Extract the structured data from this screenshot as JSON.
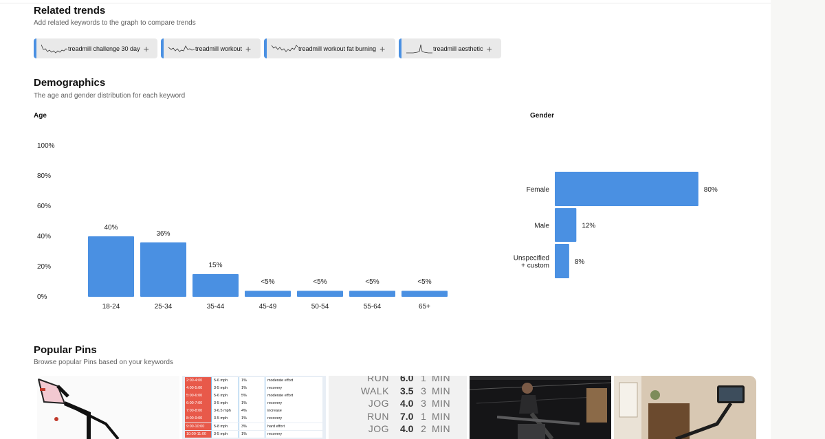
{
  "related": {
    "title": "Related trends",
    "subtitle": "Add related keywords to the graph to compare trends",
    "chips": [
      {
        "label": "treadmill challenge 30 day",
        "icon": "sparkline-icon"
      },
      {
        "label": "treadmill workout",
        "icon": "sparkline-icon"
      },
      {
        "label": "treadmill workout fat burning",
        "icon": "sparkline-icon"
      },
      {
        "label": "treadmill aesthetic",
        "icon": "sparkline-icon"
      }
    ],
    "add_symbol": "+"
  },
  "demographics": {
    "title": "Demographics",
    "subtitle": "The age and gender distribution for each keyword",
    "age_heading": "Age",
    "gender_heading": "Gender"
  },
  "chart_data": [
    {
      "type": "bar",
      "title": "Age",
      "categories": [
        "18-24",
        "25-34",
        "35-44",
        "45-49",
        "50-54",
        "55-64",
        "65+"
      ],
      "values": [
        40,
        36,
        15,
        4,
        4,
        4,
        4
      ],
      "value_labels": [
        "40%",
        "36%",
        "15%",
        "<5%",
        "<5%",
        "<5%",
        "<5%"
      ],
      "ylim": [
        0,
        100
      ],
      "yticks": [
        "100%",
        "80%",
        "60%",
        "40%",
        "20%",
        "0%"
      ],
      "color": "#4a90e2"
    },
    {
      "type": "bar",
      "orientation": "horizontal",
      "title": "Gender",
      "categories": [
        "Female",
        "Male",
        "Unspecified\n+ custom"
      ],
      "values": [
        80,
        12,
        8
      ],
      "value_labels": [
        "80%",
        "12%",
        "8%"
      ],
      "xlim": [
        0,
        100
      ],
      "color": "#4a90e2"
    }
  ],
  "popular": {
    "title": "Popular Pins",
    "subtitle": "Browse popular Pins based on your keywords",
    "schedule_rows": [
      {
        "time": "2:00-4:00",
        "speed": "5-6 mph",
        "incline": "1%",
        "note": "moderate effort"
      },
      {
        "time": "4:00-5:00",
        "speed": "3-5 mph",
        "incline": "1%",
        "note": "recovery"
      },
      {
        "time": "5:00-6:00",
        "speed": "5-6 mph",
        "incline": "5%",
        "note": "moderate effort"
      },
      {
        "time": "6:00-7:00",
        "speed": "3-5 mph",
        "incline": "1%",
        "note": "recovery"
      },
      {
        "time": "7:00-8:00",
        "speed": "3-6.5 mph",
        "incline": "4%",
        "note": "increase"
      },
      {
        "time": "8:00-9:00",
        "speed": "3-5 mph",
        "incline": "1%",
        "note": "recovery"
      },
      {
        "time": "9:00-10:00",
        "speed": "5-8 mph",
        "incline": "3%",
        "note": "hard effort"
      },
      {
        "time": "10:00-11:00",
        "speed": "3-5 mph",
        "incline": "1%",
        "note": "recovery"
      }
    ],
    "interval_rows": [
      {
        "move": "RUN",
        "speed": "6.0",
        "dur": "1",
        "unit": "MIN"
      },
      {
        "move": "WALK",
        "speed": "3.5",
        "dur": "3",
        "unit": "MIN"
      },
      {
        "move": "JOG",
        "speed": "4.0",
        "dur": "3",
        "unit": "MIN"
      },
      {
        "move": "RUN",
        "speed": "7.0",
        "dur": "1",
        "unit": "MIN"
      },
      {
        "move": "JOG",
        "speed": "4.0",
        "dur": "2",
        "unit": "MIN"
      }
    ]
  }
}
